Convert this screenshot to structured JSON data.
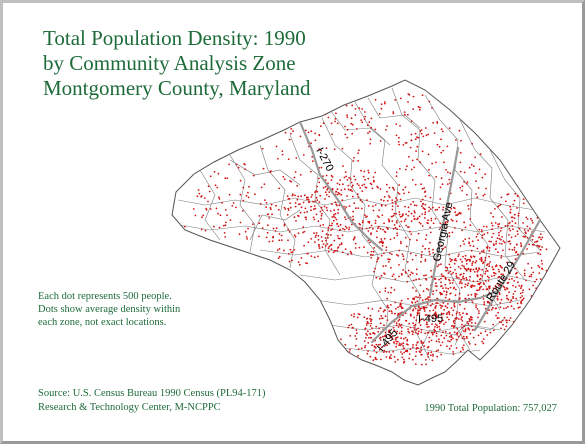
{
  "title": {
    "line1": "Total Population Density: 1990",
    "line2": "by Community Analysis Zone",
    "line3": "Montgomery County, Maryland"
  },
  "legend": {
    "line1": "Each dot represents 500 people.",
    "line2": "Dots show average density within",
    "line3": "each zone, not exact locations."
  },
  "source": {
    "line1": "Source: U.S. Census Bureau 1990 Census (PL94-171)",
    "line2": "Research & Technology Center, M-NCPPC"
  },
  "total": {
    "text": "1990 Total Population:  757,027"
  },
  "roads": {
    "i270": "I-270",
    "georgia": "Georgia Ave",
    "route29": "Route 29",
    "i495": "I-495",
    "i495b": "I-495"
  },
  "colors": {
    "title": "#1e6b3a",
    "dot": "#d01818",
    "boundary": "#777777",
    "road": "#9a9a9a"
  }
}
